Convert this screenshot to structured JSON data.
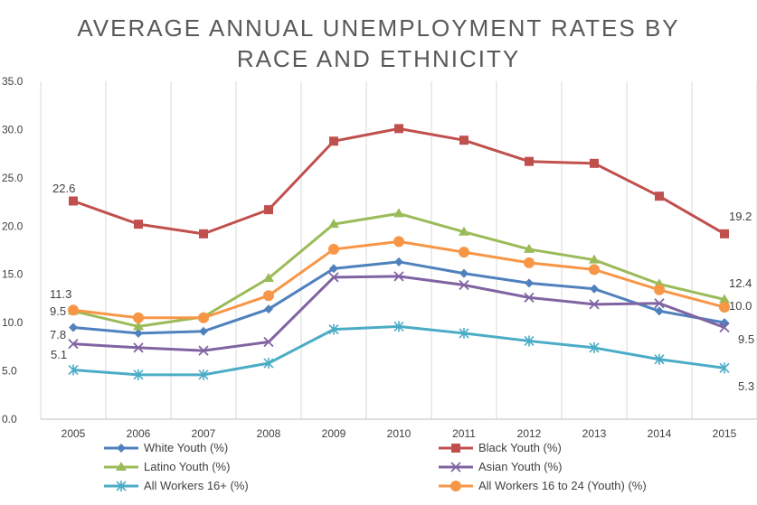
{
  "chart_data": {
    "type": "line",
    "title_lines": [
      "AVERAGE ANNUAL UNEMPLOYMENT RATES BY",
      "RACE AND ETHNICITY"
    ],
    "categories": [
      "2005",
      "2006",
      "2007",
      "2008",
      "2009",
      "2010",
      "2011",
      "2012",
      "2013",
      "2014",
      "2015"
    ],
    "ylim": [
      0,
      35
    ],
    "yticks": [
      "0.0",
      "5.0",
      "10.0",
      "15.0",
      "20.0",
      "25.0",
      "30.0",
      "35.0"
    ],
    "grid": "vertical",
    "legend_position": "bottom",
    "series": [
      {
        "name": "White Youth (%)",
        "color": "#4f81bd",
        "marker": "diamond",
        "values": [
          9.5,
          8.9,
          9.1,
          11.4,
          15.6,
          16.3,
          15.1,
          14.1,
          13.5,
          11.2,
          10.0
        ]
      },
      {
        "name": "Black Youth (%)",
        "color": "#c0504d",
        "marker": "square",
        "values": [
          22.6,
          20.2,
          19.2,
          21.7,
          28.8,
          30.1,
          28.9,
          26.7,
          26.5,
          23.1,
          19.2
        ]
      },
      {
        "name": "Latino Youth (%)",
        "color": "#9bbb59",
        "marker": "triangle",
        "values": [
          11.2,
          9.6,
          10.6,
          14.6,
          20.2,
          21.3,
          19.4,
          17.6,
          16.5,
          14.0,
          12.4
        ]
      },
      {
        "name": "Asian Youth (%)",
        "color": "#8064a2",
        "marker": "x",
        "values": [
          7.8,
          7.4,
          7.1,
          8.0,
          14.7,
          14.8,
          13.9,
          12.6,
          11.9,
          12.0,
          9.5
        ]
      },
      {
        "name": "All Workers 16+ (%)",
        "color": "#4bacc6",
        "marker": "star",
        "values": [
          5.1,
          4.6,
          4.6,
          5.8,
          9.3,
          9.6,
          8.9,
          8.1,
          7.4,
          6.2,
          5.3
        ]
      },
      {
        "name": "All Workers 16 to 24 (Youth) (%)",
        "color": "#f79646",
        "marker": "circle",
        "values": [
          11.3,
          10.5,
          10.5,
          12.8,
          17.6,
          18.4,
          17.3,
          16.2,
          15.5,
          13.4,
          11.6
        ]
      }
    ],
    "data_labels": [
      {
        "text": "22.6"
      },
      {
        "text": "11.3"
      },
      {
        "text": "9.5"
      },
      {
        "text": "7.8"
      },
      {
        "text": "5.1"
      },
      {
        "text": "19.2"
      },
      {
        "text": "12.4"
      },
      {
        "text": "10.0"
      },
      {
        "text": "9.5"
      },
      {
        "text": "5.3"
      }
    ]
  }
}
